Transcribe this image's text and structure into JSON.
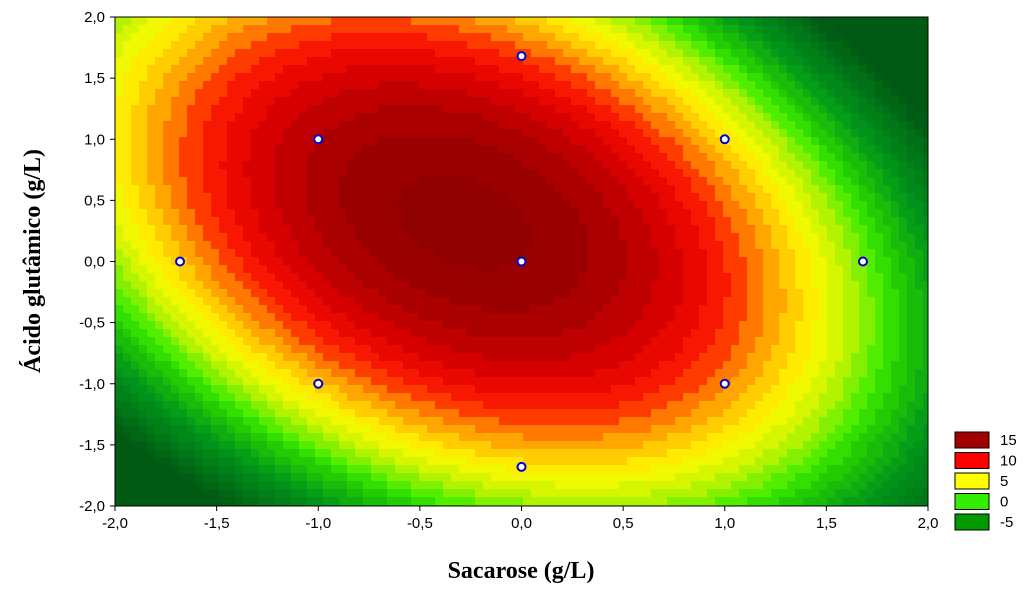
{
  "chart_data": {
    "type": "contour",
    "xlabel": "Sacarose (g/L)",
    "ylabel": "Ácido glutâmico (g/L)",
    "xlim": [
      -2.0,
      2.0
    ],
    "ylim": [
      -2.0,
      2.0
    ],
    "x_ticks": [
      "-2,0",
      "-1,5",
      "-1,0",
      "-0,5",
      "0,0",
      "0,5",
      "1,0",
      "1,5",
      "2,0"
    ],
    "y_ticks": [
      "2,0",
      "1,5",
      "1,0",
      "0,5",
      "0,0",
      "-0,5",
      "-1,0",
      "-1,5",
      "-2,0"
    ],
    "legend": {
      "position": "bottom-right",
      "entries": [
        {
          "label": "15",
          "color": "#a00000"
        },
        {
          "label": "10",
          "color": "#ff0000"
        },
        {
          "label": "5",
          "color": "#ffff00"
        },
        {
          "label": "0",
          "color": "#33ee00"
        },
        {
          "label": "-5",
          "color": "#009900"
        }
      ]
    },
    "surface": {
      "z_max": 16.4,
      "center": [
        -0.28,
        0.32
      ],
      "note_levels": [
        -5,
        0,
        5,
        10,
        15
      ]
    },
    "design_points": [
      {
        "x": -1.0,
        "y": -1.0
      },
      {
        "x": 1.0,
        "y": -1.0
      },
      {
        "x": -1.0,
        "y": 1.0
      },
      {
        "x": 1.0,
        "y": 1.0
      },
      {
        "x": -1.68,
        "y": 0.0
      },
      {
        "x": 1.68,
        "y": 0.0
      },
      {
        "x": 0.0,
        "y": -1.68
      },
      {
        "x": 0.0,
        "y": 1.68
      },
      {
        "x": 0.0,
        "y": 0.0
      }
    ]
  }
}
